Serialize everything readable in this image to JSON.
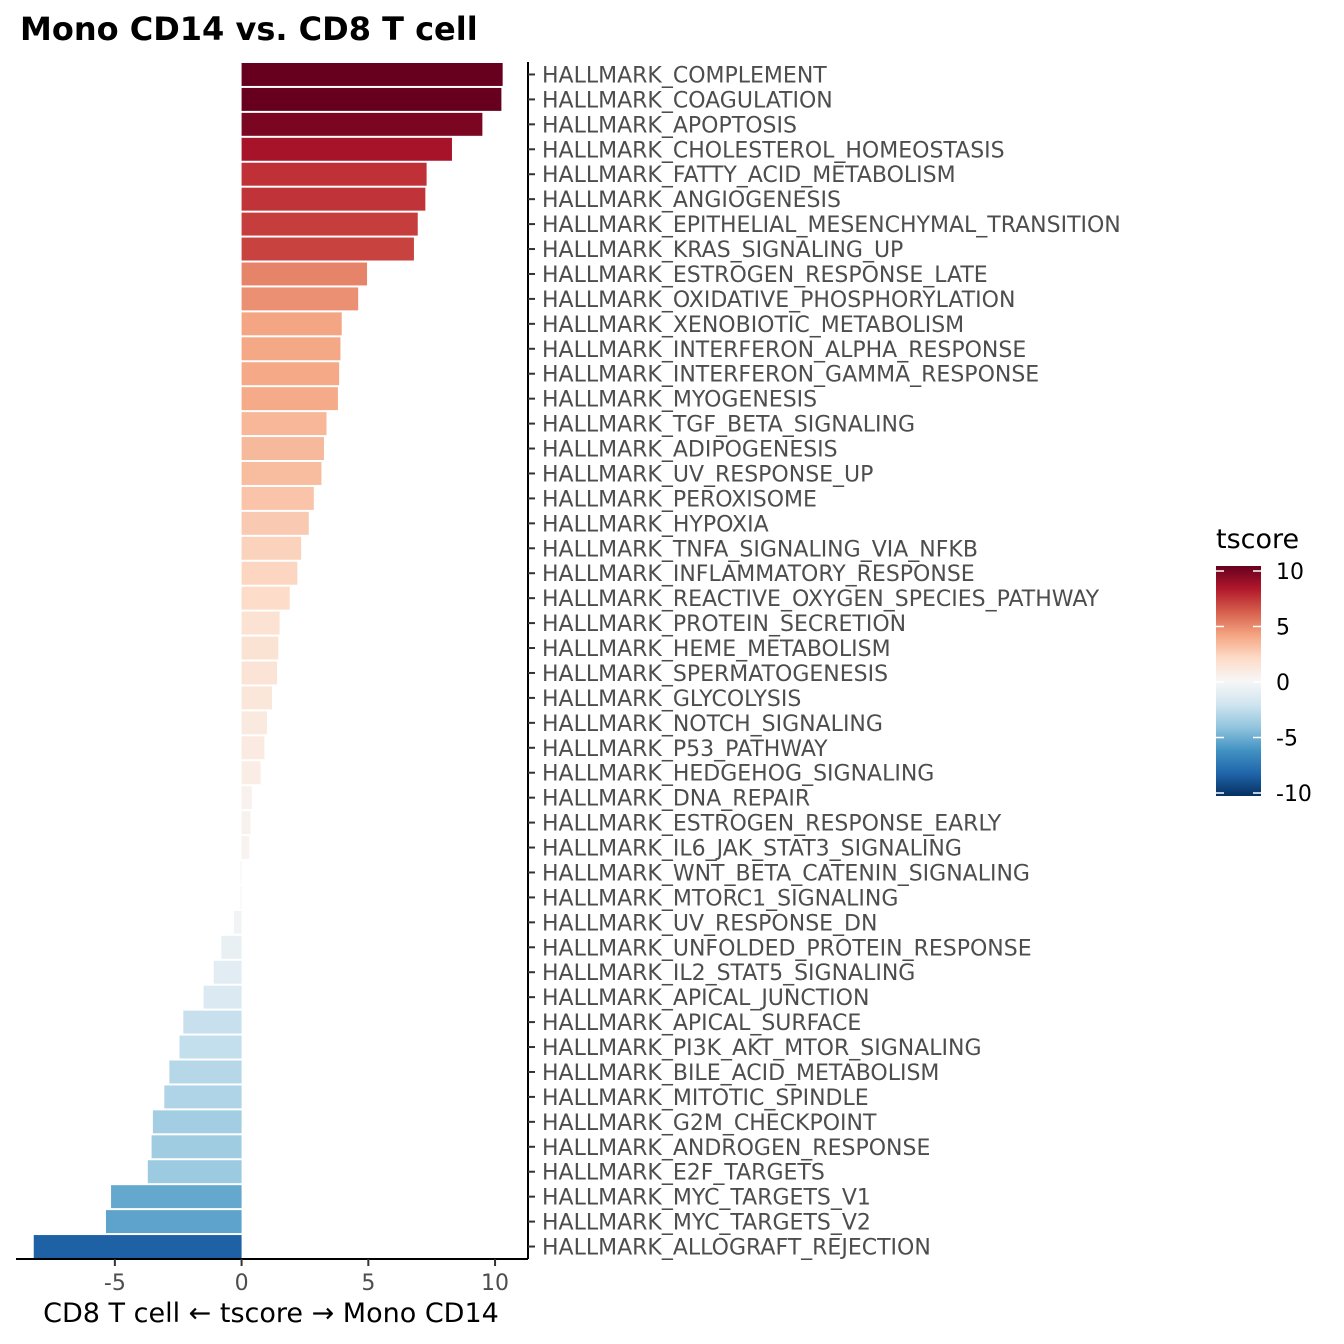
{
  "chart_data": {
    "type": "bar",
    "orientation": "horizontal",
    "title": "Mono CD14 vs. CD8 T cell",
    "xlabel": "CD8 T cell ← tscore → Mono CD14",
    "ylabel": "",
    "xlim": [
      -8.9,
      11.3
    ],
    "xticks": [
      -5,
      0,
      5,
      10
    ],
    "xtick_labels": [
      "-5",
      "0",
      "5",
      "10"
    ],
    "categories": [
      "HALLMARK_COMPLEMENT",
      "HALLMARK_COAGULATION",
      "HALLMARK_APOPTOSIS",
      "HALLMARK_CHOLESTEROL_HOMEOSTASIS",
      "HALLMARK_FATTY_ACID_METABOLISM",
      "HALLMARK_ANGIOGENESIS",
      "HALLMARK_EPITHELIAL_MESENCHYMAL_TRANSITION",
      "HALLMARK_KRAS_SIGNALING_UP",
      "HALLMARK_ESTROGEN_RESPONSE_LATE",
      "HALLMARK_OXIDATIVE_PHOSPHORYLATION",
      "HALLMARK_XENOBIOTIC_METABOLISM",
      "HALLMARK_INTERFERON_ALPHA_RESPONSE",
      "HALLMARK_INTERFERON_GAMMA_RESPONSE",
      "HALLMARK_MYOGENESIS",
      "HALLMARK_TGF_BETA_SIGNALING",
      "HALLMARK_ADIPOGENESIS",
      "HALLMARK_UV_RESPONSE_UP",
      "HALLMARK_PEROXISOME",
      "HALLMARK_HYPOXIA",
      "HALLMARK_TNFA_SIGNALING_VIA_NFKB",
      "HALLMARK_INFLAMMATORY_RESPONSE",
      "HALLMARK_REACTIVE_OXYGEN_SPECIES_PATHWAY",
      "HALLMARK_PROTEIN_SECRETION",
      "HALLMARK_HEME_METABOLISM",
      "HALLMARK_SPERMATOGENESIS",
      "HALLMARK_GLYCOLYSIS",
      "HALLMARK_NOTCH_SIGNALING",
      "HALLMARK_P53_PATHWAY",
      "HALLMARK_HEDGEHOG_SIGNALING",
      "HALLMARK_DNA_REPAIR",
      "HALLMARK_ESTROGEN_RESPONSE_EARLY",
      "HALLMARK_IL6_JAK_STAT3_SIGNALING",
      "HALLMARK_WNT_BETA_CATENIN_SIGNALING",
      "HALLMARK_MTORC1_SIGNALING",
      "HALLMARK_UV_RESPONSE_DN",
      "HALLMARK_UNFOLDED_PROTEIN_RESPONSE",
      "HALLMARK_IL2_STAT5_SIGNALING",
      "HALLMARK_APICAL_JUNCTION",
      "HALLMARK_APICAL_SURFACE",
      "HALLMARK_PI3K_AKT_MTOR_SIGNALING",
      "HALLMARK_BILE_ACID_METABOLISM",
      "HALLMARK_MITOTIC_SPINDLE",
      "HALLMARK_G2M_CHECKPOINT",
      "HALLMARK_ANDROGEN_RESPONSE",
      "HALLMARK_E2F_TARGETS",
      "HALLMARK_MYC_TARGETS_V1",
      "HALLMARK_MYC_TARGETS_V2",
      "HALLMARK_ALLOGRAFT_REJECTION"
    ],
    "values": [
      10.3,
      10.25,
      9.5,
      8.3,
      7.3,
      7.25,
      6.95,
      6.8,
      4.95,
      4.6,
      3.95,
      3.9,
      3.85,
      3.8,
      3.35,
      3.25,
      3.15,
      2.85,
      2.65,
      2.35,
      2.2,
      1.9,
      1.5,
      1.45,
      1.4,
      1.2,
      1.0,
      0.9,
      0.75,
      0.4,
      0.35,
      0.3,
      -0.05,
      -0.05,
      -0.3,
      -0.8,
      -1.1,
      -1.5,
      -2.3,
      -2.45,
      -2.85,
      -3.05,
      -3.5,
      -3.55,
      -3.7,
      -5.15,
      -5.35,
      -8.2
    ],
    "legend": {
      "title": "tscore",
      "position": "right",
      "scale_ticks": [
        10,
        5,
        0,
        -5,
        -10
      ],
      "scale_tick_labels": [
        "10",
        "5",
        "0",
        "-5",
        "-10"
      ],
      "colors": [
        "#67001f",
        "#b2182b",
        "#d6604d",
        "#f4a582",
        "#fddbc7",
        "#f7f7f7",
        "#d1e5f0",
        "#92c5de",
        "#4393c3",
        "#2166ac",
        "#053061"
      ]
    },
    "grid": false
  }
}
